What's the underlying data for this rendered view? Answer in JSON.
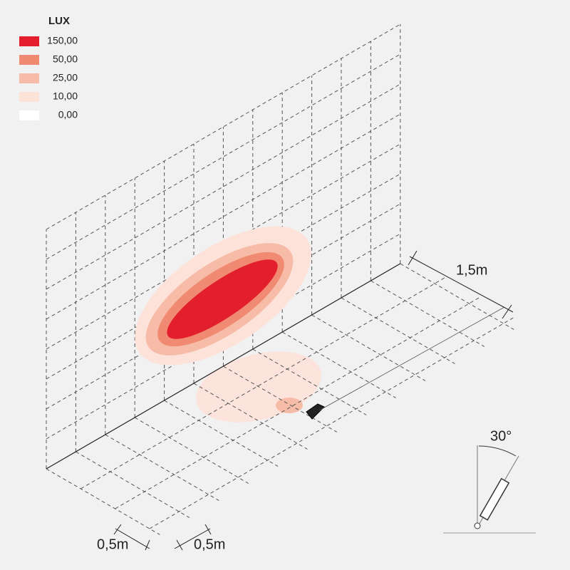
{
  "legend": {
    "title": "LUX",
    "items": [
      {
        "label": "150,00",
        "color": "#e31e2d"
      },
      {
        "label": "50,00",
        "color": "#f08a72"
      },
      {
        "label": "25,00",
        "color": "#f7bca8"
      },
      {
        "label": "10,00",
        "color": "#fde2da"
      },
      {
        "label": "0,00",
        "color": "#ffffff"
      }
    ]
  },
  "dimensions": {
    "depth": "1,5m",
    "cell_x": "0,5m",
    "cell_y": "0,5m",
    "tilt": "30°"
  }
}
